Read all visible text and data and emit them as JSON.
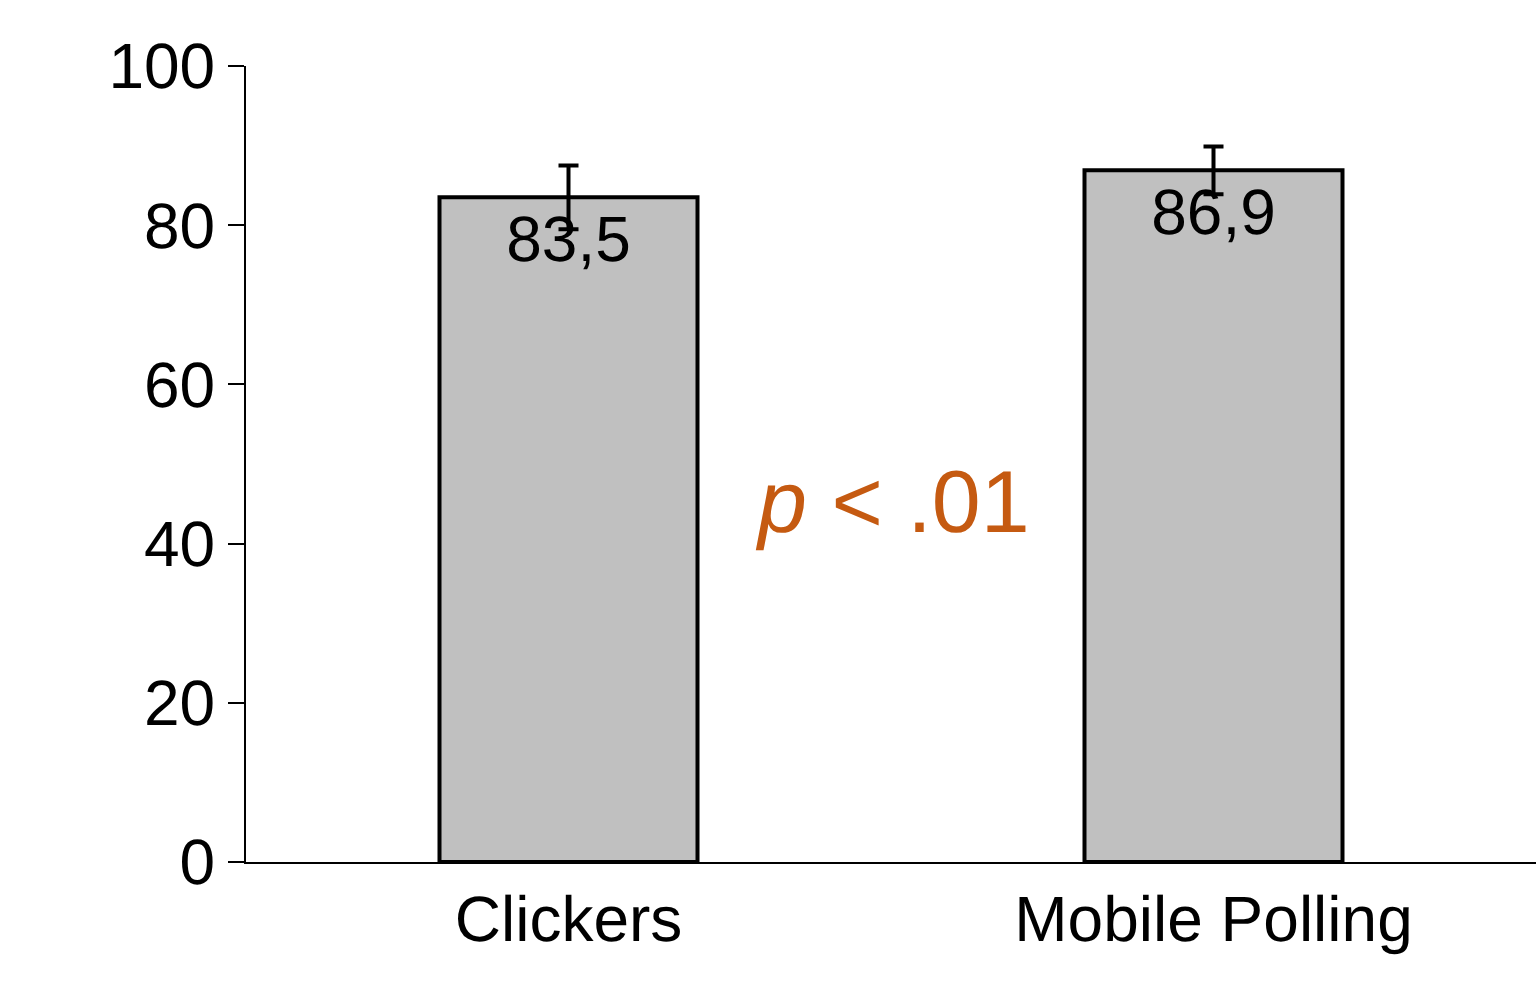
{
  "chart_data": {
    "type": "bar",
    "categories": [
      "Clickers",
      "Mobile Polling"
    ],
    "values": [
      83.5,
      86.9
    ],
    "errors": [
      4,
      3
    ],
    "value_labels": [
      "83,5",
      "86,9"
    ],
    "color": "#c0c0c0",
    "ylim": [
      0,
      100
    ],
    "yticks": [
      0,
      20,
      40,
      60,
      80,
      100
    ],
    "annotations": [
      "p < .01"
    ]
  }
}
